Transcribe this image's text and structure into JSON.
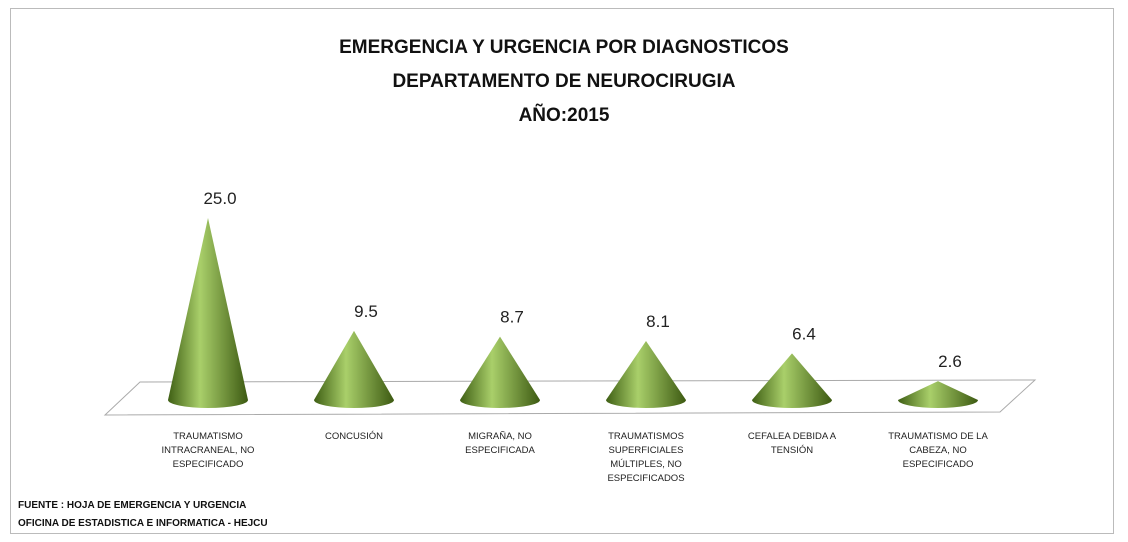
{
  "chart_data": {
    "type": "cone",
    "title": [
      "EMERGENCIA Y URGENCIA POR DIAGNOSTICOS",
      "DEPARTAMENTO DE NEUROCIRUGIA",
      "AÑO:2015"
    ],
    "categories": [
      "TRAUMATISMO INTRACRANEAL, NO ESPECIFICADO",
      "CONCUSIÓN",
      "MIGRAÑA, NO ESPECIFICADA",
      "TRAUMATISMOS SUPERFICIALES MÚLTIPLES, NO ESPECIFICADOS",
      "CEFALEA DEBIDA A TENSIÓN",
      "TRAUMATISMO DE LA CABEZA, NO ESPECIFICADO"
    ],
    "values": [
      25.0,
      9.5,
      8.7,
      8.1,
      6.4,
      2.6
    ],
    "value_labels": [
      "25.0",
      "9.5",
      "8.7",
      "8.1",
      "6.4",
      "2.6"
    ],
    "color": "#6f9a2e",
    "source": [
      "FUENTE : HOJA DE EMERGENCIA Y URGENCIA",
      "OFICINA DE ESTADISTICA E INFORMATICA - HEJCU"
    ]
  }
}
